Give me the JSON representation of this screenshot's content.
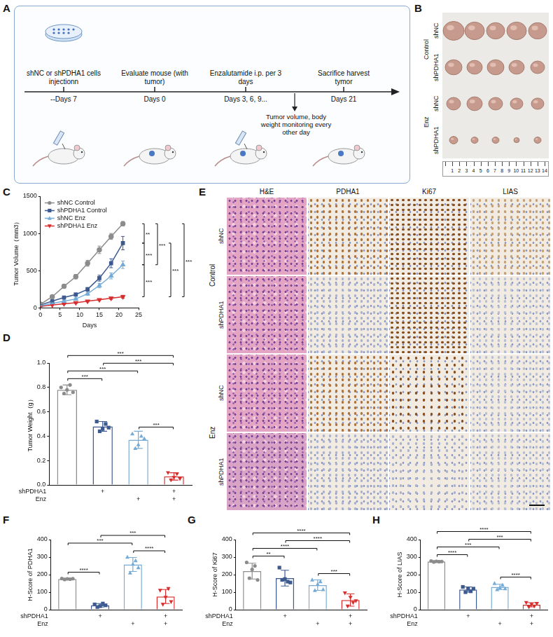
{
  "panels": {
    "A": {
      "letter": "A",
      "steps": [
        {
          "text": "shNC or shPDHA1 cells injectionn",
          "day": "--Days 7"
        },
        {
          "text": "Evaluate mouse (with tumor)",
          "day": "Days 0"
        },
        {
          "text": "Enzalutamide i.p. per 3 days",
          "day": "Days 3, 6, 9..."
        },
        {
          "text": "Sacrifice harvest tymor",
          "day": "Days 21"
        }
      ],
      "note": "Tumor volume, body weight monitoring every other day"
    },
    "B": {
      "letter": "B",
      "groups": [
        "Control",
        "Enz"
      ],
      "rows": [
        "shNC",
        "shPDHA1",
        "shNC",
        "shPDHA1"
      ],
      "ruler": [
        "1",
        "2",
        "3",
        "4",
        "5",
        "6",
        "7",
        "8",
        "9",
        "10",
        "11",
        "12",
        "13",
        "14"
      ]
    },
    "E": {
      "letter": "E",
      "columns": [
        "H&E",
        "PDHA1",
        "Ki67",
        "LIAS"
      ],
      "groups": [
        "Control",
        "Enz"
      ],
      "rows": [
        "shNC",
        "shPDHA1",
        "shNC",
        "shPDHA1"
      ]
    }
  },
  "chart_data": [
    {
      "letter": "C",
      "type": "line",
      "x_label": "Days",
      "y_label": "Tumor Volume（mm3）",
      "x": [
        0,
        3,
        6,
        9,
        12,
        15,
        18,
        21
      ],
      "xlim": [
        0,
        25
      ],
      "xticks": [
        0,
        5,
        10,
        15,
        20,
        25
      ],
      "ylim": [
        0,
        1500
      ],
      "yticks": [
        0,
        500,
        1000,
        1500
      ],
      "grid": false,
      "legend": "top-left",
      "series": [
        {
          "name": "shNC Control",
          "color": "#8c8c8c",
          "marker": "circle",
          "values": [
            50,
            150,
            290,
            420,
            600,
            780,
            960,
            1130
          ],
          "errors": [
            5,
            15,
            25,
            30,
            40,
            50,
            40,
            30
          ]
        },
        {
          "name": "shPDHA1 Control",
          "color": "#3d5a8f",
          "marker": "square",
          "values": [
            40,
            90,
            140,
            180,
            250,
            400,
            600,
            870
          ],
          "errors": [
            5,
            10,
            15,
            20,
            25,
            40,
            60,
            90
          ]
        },
        {
          "name": "shNC Enz",
          "color": "#76abd6",
          "marker": "triangle",
          "values": [
            30,
            60,
            90,
            120,
            190,
            300,
            430,
            580
          ],
          "errors": [
            5,
            10,
            10,
            15,
            20,
            30,
            40,
            50
          ]
        },
        {
          "name": "shPDHA1 Enz",
          "color": "#d62e2e",
          "marker": "triangle-down",
          "values": [
            20,
            40,
            55,
            70,
            90,
            110,
            130,
            150
          ],
          "errors": [
            3,
            5,
            8,
            10,
            10,
            12,
            15,
            20
          ]
        }
      ],
      "significance": [
        {
          "pair": [
            0,
            1
          ],
          "label": "**"
        },
        {
          "pair": [
            1,
            2
          ],
          "label": "***"
        },
        {
          "pair": [
            2,
            3
          ],
          "label": "***"
        },
        {
          "pair": [
            0,
            2
          ],
          "label": "***"
        },
        {
          "pair": [
            1,
            3
          ],
          "label": "***"
        },
        {
          "pair": [
            0,
            3
          ],
          "label": "***"
        }
      ]
    },
    {
      "letter": "D",
      "type": "bar",
      "y_label": "Tumor Weight（g）",
      "ylim": [
        0,
        1.0
      ],
      "yticks": [
        {
          "value": 0,
          "label": "0.0"
        },
        {
          "value": 0.2,
          "label": "0.2"
        },
        {
          "value": 0.4,
          "label": "0.4"
        },
        {
          "value": 0.6,
          "label": "0.6"
        },
        {
          "value": 0.8,
          "label": "0.8"
        },
        {
          "value": 1.0,
          "label": "1.0"
        }
      ],
      "grid": false,
      "factors": [
        {
          "name": "shPDHA1",
          "marks": [
            null,
            "+",
            null,
            "+"
          ]
        },
        {
          "name": "Enz",
          "marks": [
            null,
            null,
            "+",
            "+"
          ]
        }
      ],
      "series": [
        {
          "color": "#8c8c8c",
          "marker": "circle",
          "values": [
            0.78
          ],
          "errors": [
            0.04
          ],
          "points": [
            0.8,
            0.75,
            0.78,
            0.82,
            0.76
          ]
        },
        {
          "color": "#3d5a8f",
          "marker": "square",
          "values": [
            0.48
          ],
          "errors": [
            0.04
          ],
          "points": [
            0.52,
            0.44,
            0.46,
            0.5,
            0.47
          ]
        },
        {
          "color": "#76abd6",
          "marker": "triangle",
          "values": [
            0.37
          ],
          "errors": [
            0.07
          ],
          "points": [
            0.42,
            0.3,
            0.33,
            0.4,
            0.38
          ]
        },
        {
          "color": "#d62e2e",
          "marker": "triangle-down",
          "values": [
            0.07
          ],
          "errors": [
            0.03
          ],
          "points": [
            0.1,
            0.04,
            0.06,
            0.09,
            0.05
          ]
        }
      ],
      "significance": [
        {
          "pair": [
            0,
            1
          ],
          "label": "***"
        },
        {
          "pair": [
            0,
            2
          ],
          "label": "***"
        },
        {
          "pair": [
            0,
            3
          ],
          "label": "***"
        },
        {
          "pair": [
            2,
            3
          ],
          "label": "***"
        },
        {
          "pair": [
            1,
            3
          ],
          "label": "***"
        }
      ]
    },
    {
      "letter": "F",
      "type": "bar",
      "y_label": "H-Score of PDHA1",
      "ylim": [
        0,
        400
      ],
      "yticks": [
        0,
        100,
        200,
        300,
        400
      ],
      "grid": false,
      "factors": [
        {
          "name": "shPDHA1",
          "marks": [
            null,
            "+",
            null,
            "+"
          ]
        },
        {
          "name": "Enz",
          "marks": [
            null,
            null,
            "+",
            "+"
          ]
        }
      ],
      "series": [
        {
          "color": "#8c8c8c",
          "marker": "circle",
          "values": [
            175
          ],
          "errors": [
            5
          ],
          "points": [
            178,
            172,
            176,
            174,
            177
          ]
        },
        {
          "color": "#3d5a8f",
          "marker": "square",
          "values": [
            25
          ],
          "errors": [
            10
          ],
          "points": [
            30,
            15,
            20,
            35,
            25
          ]
        },
        {
          "color": "#76abd6",
          "marker": "triangle",
          "values": [
            258
          ],
          "errors": [
            40
          ],
          "points": [
            300,
            210,
            260,
            280,
            240
          ]
        },
        {
          "color": "#d62e2e",
          "marker": "triangle-down",
          "values": [
            75
          ],
          "errors": [
            40
          ],
          "points": [
            110,
            30,
            70,
            120,
            45
          ]
        }
      ],
      "significance": [
        {
          "pair": [
            0,
            1
          ],
          "label": "****"
        },
        {
          "pair": [
            0,
            2
          ],
          "label": "***"
        },
        {
          "pair": [
            2,
            3
          ],
          "label": "****"
        },
        {
          "pair": [
            1,
            3
          ],
          "label": "***"
        }
      ]
    },
    {
      "letter": "G",
      "type": "bar",
      "y_label": "H-Score of Ki67",
      "ylim": [
        0,
        400
      ],
      "yticks": [
        0,
        100,
        200,
        300,
        400
      ],
      "grid": false,
      "factors": [
        {
          "name": "shPDHA1",
          "marks": [
            null,
            "+",
            null,
            "+"
          ]
        },
        {
          "name": "Enz",
          "marks": [
            null,
            null,
            "+",
            "+"
          ]
        }
      ],
      "series": [
        {
          "color": "#8c8c8c",
          "marker": "circle",
          "values": [
            220
          ],
          "errors": [
            45
          ],
          "points": [
            270,
            180,
            230,
            250,
            170
          ]
        },
        {
          "color": "#3d5a8f",
          "marker": "square",
          "values": [
            180
          ],
          "errors": [
            45
          ],
          "points": [
            240,
            170,
            175,
            160,
            155
          ]
        },
        {
          "color": "#76abd6",
          "marker": "triangle",
          "values": [
            140
          ],
          "errors": [
            30
          ],
          "points": [
            170,
            110,
            145,
            160,
            115
          ]
        },
        {
          "color": "#d62e2e",
          "marker": "triangle-down",
          "values": [
            55
          ],
          "errors": [
            35
          ],
          "points": [
            95,
            20,
            70,
            40,
            50
          ]
        }
      ],
      "significance": [
        {
          "pair": [
            0,
            1
          ],
          "label": "**"
        },
        {
          "pair": [
            0,
            2
          ],
          "label": "****"
        },
        {
          "pair": [
            0,
            3
          ],
          "label": "****"
        },
        {
          "pair": [
            1,
            3
          ],
          "label": "****"
        },
        {
          "pair": [
            2,
            3
          ],
          "label": "***"
        }
      ]
    },
    {
      "letter": "H",
      "type": "bar",
      "y_label": "H-Score of LIAS",
      "ylim": [
        0,
        400
      ],
      "yticks": [
        0,
        100,
        200,
        300,
        400
      ],
      "grid": false,
      "factors": [
        {
          "name": "shPDHA1",
          "marks": [
            null,
            "+",
            null,
            "+"
          ]
        },
        {
          "name": "Enz",
          "marks": [
            null,
            null,
            "+",
            "+"
          ]
        }
      ],
      "series": [
        {
          "color": "#8c8c8c",
          "marker": "circle",
          "values": [
            275
          ],
          "errors": [
            5
          ],
          "points": [
            278,
            272,
            276,
            274,
            275
          ]
        },
        {
          "color": "#3d5a8f",
          "marker": "square",
          "values": [
            115
          ],
          "errors": [
            15
          ],
          "points": [
            130,
            100,
            120,
            105,
            120
          ]
        },
        {
          "color": "#76abd6",
          "marker": "triangle",
          "values": [
            130
          ],
          "errors": [
            15
          ],
          "points": [
            150,
            115,
            125,
            140,
            120
          ]
        },
        {
          "color": "#d62e2e",
          "marker": "triangle-down",
          "values": [
            28
          ],
          "errors": [
            12
          ],
          "points": [
            40,
            15,
            30,
            20,
            35
          ]
        }
      ],
      "significance": [
        {
          "pair": [
            0,
            1
          ],
          "label": "****"
        },
        {
          "pair": [
            0,
            2
          ],
          "label": "***"
        },
        {
          "pair": [
            0,
            3
          ],
          "label": "****"
        },
        {
          "pair": [
            1,
            3
          ],
          "label": "***"
        },
        {
          "pair": [
            2,
            3
          ],
          "label": "****"
        }
      ]
    }
  ]
}
